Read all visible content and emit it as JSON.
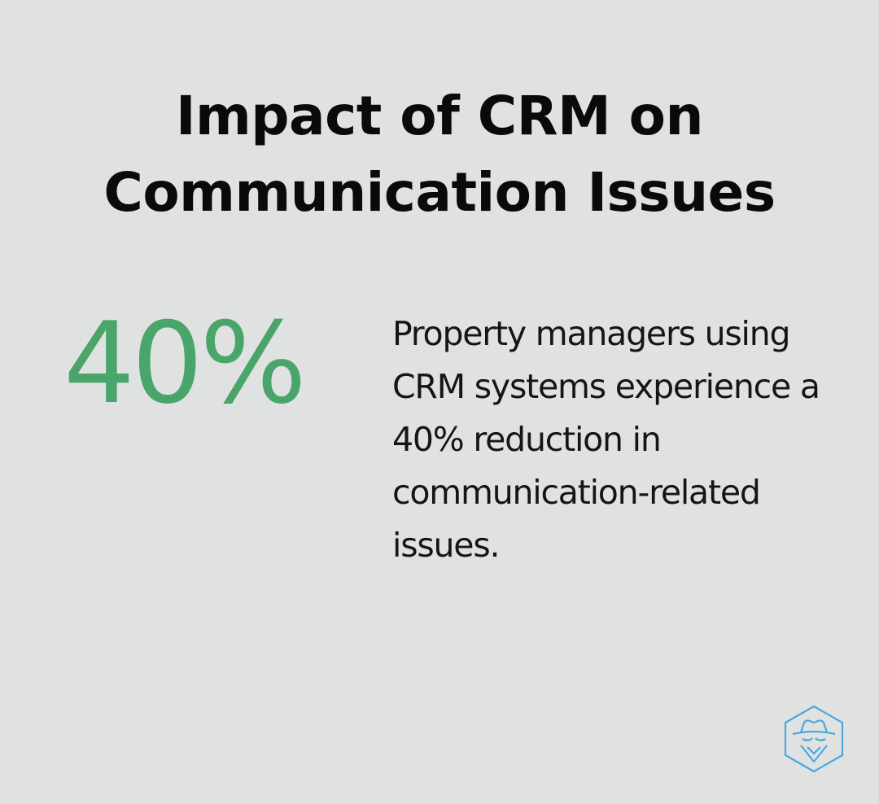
{
  "title": "Impact of CRM on Communication Issues",
  "stat": {
    "value": "40%",
    "description": "Property managers using CRM systems experience a 40% reduction in communication-related issues."
  },
  "colors": {
    "background": "#e0e2e1",
    "accent": "#4aa56a",
    "logo": "#4aa8e0"
  },
  "logo_icon": "hexagon-spy-icon"
}
